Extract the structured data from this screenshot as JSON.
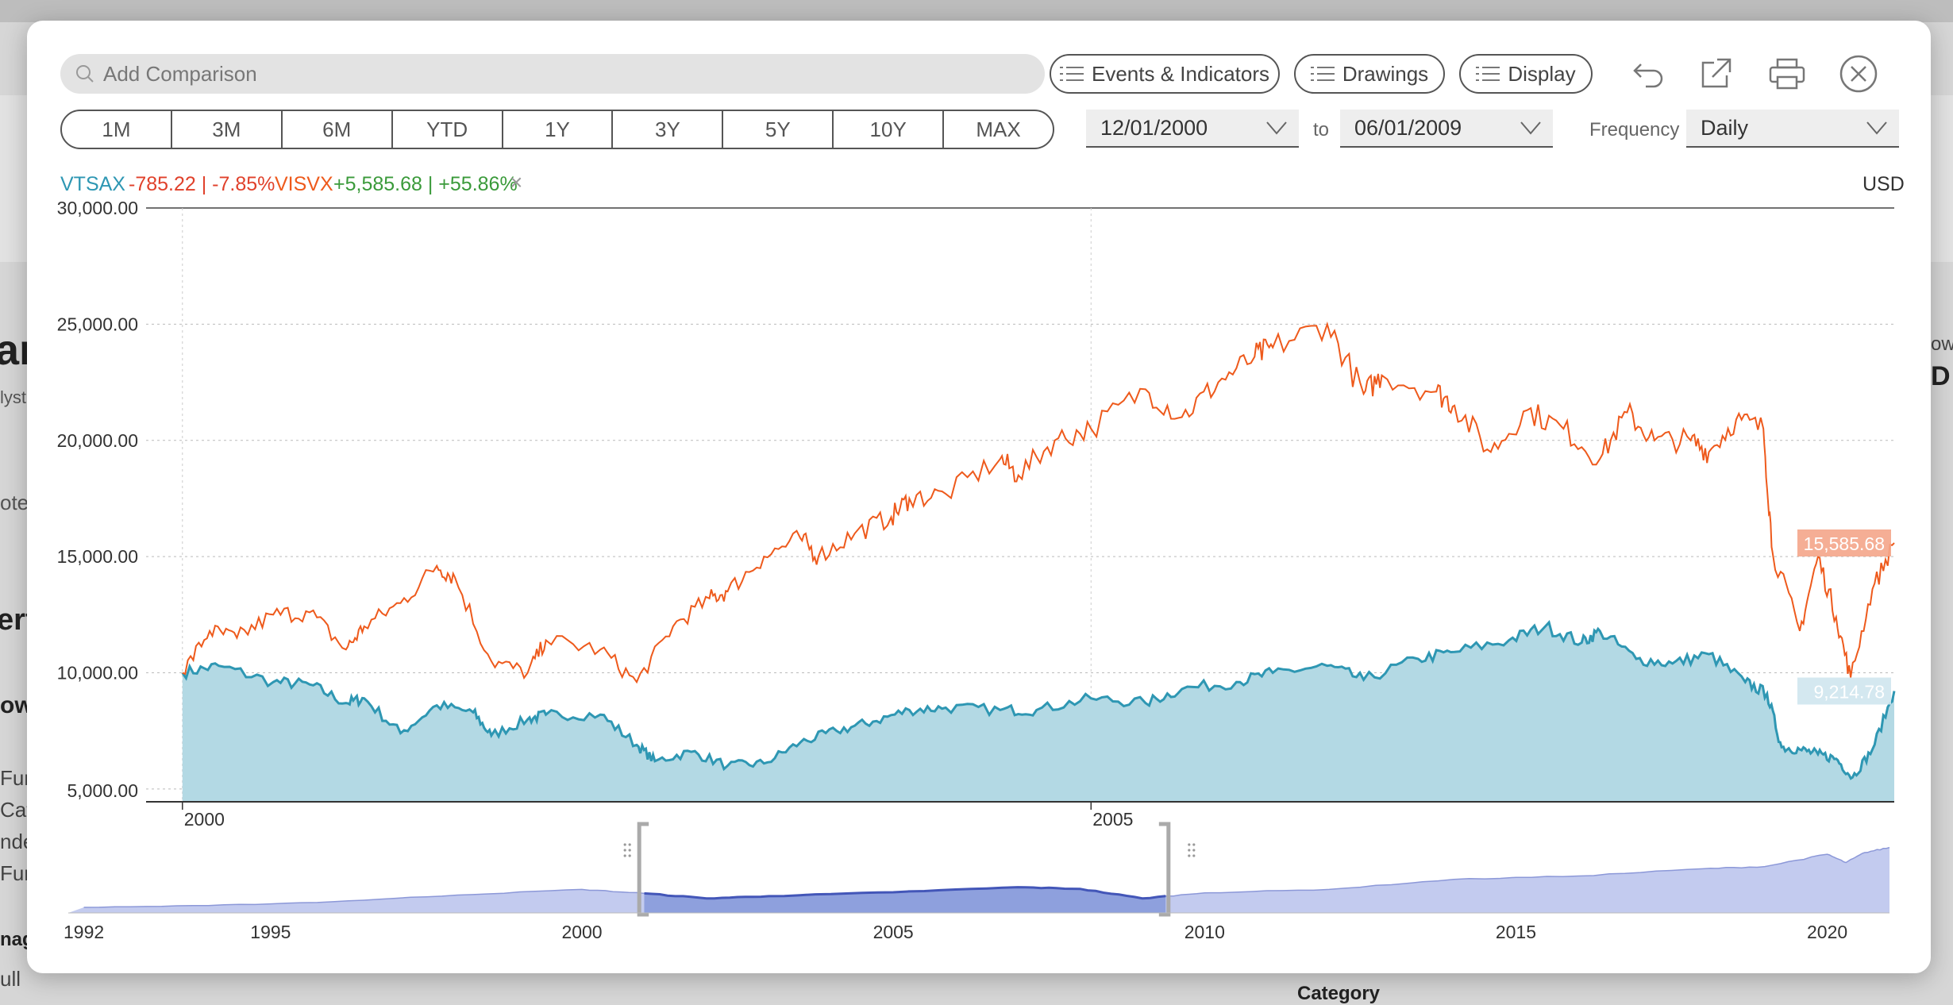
{
  "toolbar": {
    "search_placeholder": "Add Comparison",
    "events_label": "Events & Indicators",
    "drawings_label": "Drawings",
    "display_label": "Display"
  },
  "ranges": [
    "1M",
    "3M",
    "6M",
    "YTD",
    "1Y",
    "3Y",
    "5Y",
    "10Y",
    "MAX"
  ],
  "dates": {
    "start": "12/01/2000",
    "to_label": "to",
    "end": "06/01/2009",
    "frequency_label": "Frequency",
    "frequency_value": "Daily"
  },
  "legend": {
    "s1_name": "VTSAX",
    "s1_change": "-785.22 | -7.85%",
    "s2_name": "VISVX",
    "s2_change": "+5,585.68 | +55.86%",
    "remove": "×",
    "currency": "USD"
  },
  "background": {
    "frag1": "ar",
    "frag2": "lyst",
    "frag3": "ote",
    "frag4": "erf",
    "frag5": "ow",
    "frag6": "Fun",
    "frag7": "Cat",
    "frag8": "nde",
    "frag9": "Fun",
    "frag10": "nag",
    "frag11": "ull",
    "frag12": "Category",
    "frag13": "ow",
    "frag14": "D"
  },
  "colors": {
    "vtsax": "#2e97b3",
    "vtsax_fill": "#b3d9e4",
    "visvx": "#ee5a1c",
    "visvx_badge": "#f4a58a",
    "vtsax_badge": "#cfe6ee",
    "navigator": "#c3cbef",
    "navigator_sel": "#8ea0dd",
    "navigator_line": "#4356b8"
  },
  "chart_data": {
    "type": "line",
    "y_ticks": [
      "30,000.00",
      "25,000.00",
      "20,000.00",
      "15,000.00",
      "10,000.00",
      "5,000.00"
    ],
    "ylim": [
      4450,
      30000
    ],
    "x_ticks": [
      "2000",
      "2005"
    ],
    "x_range": [
      1999.8,
      2009.42
    ],
    "series": [
      {
        "name": "VTSAX",
        "end_label": "9,214.78",
        "points": [
          [
            2000.0,
            10000
          ],
          [
            2000.2,
            10300
          ],
          [
            2000.5,
            9600
          ],
          [
            2000.7,
            9500
          ],
          [
            2000.9,
            8700
          ],
          [
            2001.0,
            8900
          ],
          [
            2001.2,
            7400
          ],
          [
            2001.4,
            8600
          ],
          [
            2001.6,
            8300
          ],
          [
            2001.7,
            7300
          ],
          [
            2001.9,
            8000
          ],
          [
            2002.0,
            8200
          ],
          [
            2002.3,
            8200
          ],
          [
            2002.5,
            6900
          ],
          [
            2002.6,
            6200
          ],
          [
            2002.8,
            6600
          ],
          [
            2003.0,
            6000
          ],
          [
            2003.2,
            6100
          ],
          [
            2003.4,
            7000
          ],
          [
            2003.6,
            7500
          ],
          [
            2003.8,
            7900
          ],
          [
            2004.0,
            8400
          ],
          [
            2004.2,
            8500
          ],
          [
            2004.5,
            8400
          ],
          [
            2004.7,
            8400
          ],
          [
            2005.0,
            8900
          ],
          [
            2005.3,
            8700
          ],
          [
            2005.5,
            9300
          ],
          [
            2005.8,
            9600
          ],
          [
            2006.0,
            10000
          ],
          [
            2006.3,
            10300
          ],
          [
            2006.5,
            9700
          ],
          [
            2006.8,
            10600
          ],
          [
            2007.0,
            10900
          ],
          [
            2007.3,
            11400
          ],
          [
            2007.5,
            12000
          ],
          [
            2007.7,
            11300
          ],
          [
            2007.8,
            11800
          ],
          [
            2008.0,
            10600
          ],
          [
            2008.2,
            10400
          ],
          [
            2008.4,
            10800
          ],
          [
            2008.6,
            9600
          ],
          [
            2008.72,
            9100
          ],
          [
            2008.8,
            6800
          ],
          [
            2008.9,
            6700
          ],
          [
            2009.0,
            6500
          ],
          [
            2009.1,
            6300
          ],
          [
            2009.19,
            5500
          ],
          [
            2009.3,
            6700
          ],
          [
            2009.42,
            9215
          ]
        ]
      },
      {
        "name": "VISVX",
        "end_label": "15,585.68",
        "points": [
          [
            2000.0,
            10000
          ],
          [
            2000.15,
            11800
          ],
          [
            2000.3,
            11500
          ],
          [
            2000.5,
            12500
          ],
          [
            2000.7,
            12600
          ],
          [
            2000.9,
            11000
          ],
          [
            2001.0,
            12000
          ],
          [
            2001.2,
            13000
          ],
          [
            2001.4,
            14600
          ],
          [
            2001.5,
            14100
          ],
          [
            2001.7,
            10500
          ],
          [
            2001.9,
            10000
          ],
          [
            2002.0,
            11400
          ],
          [
            2002.3,
            11000
          ],
          [
            2002.5,
            9600
          ],
          [
            2002.7,
            12000
          ],
          [
            2002.9,
            13200
          ],
          [
            2003.0,
            13500
          ],
          [
            2003.2,
            15000
          ],
          [
            2003.4,
            15800
          ],
          [
            2003.5,
            15000
          ],
          [
            2003.7,
            16000
          ],
          [
            2003.9,
            16700
          ],
          [
            2004.0,
            17500
          ],
          [
            2004.2,
            17700
          ],
          [
            2004.5,
            19200
          ],
          [
            2004.6,
            18500
          ],
          [
            2004.8,
            20000
          ],
          [
            2005.0,
            20500
          ],
          [
            2005.3,
            22200
          ],
          [
            2005.5,
            21000
          ],
          [
            2005.7,
            22500
          ],
          [
            2005.9,
            23600
          ],
          [
            2006.0,
            24000
          ],
          [
            2006.3,
            25000
          ],
          [
            2006.5,
            22000
          ],
          [
            2006.6,
            22800
          ],
          [
            2006.9,
            22100
          ],
          [
            2007.0,
            21500
          ],
          [
            2007.2,
            19500
          ],
          [
            2007.4,
            21300
          ],
          [
            2007.6,
            20500
          ],
          [
            2007.8,
            19200
          ],
          [
            2007.95,
            21200
          ],
          [
            2008.1,
            20000
          ],
          [
            2008.3,
            20000
          ],
          [
            2008.4,
            19500
          ],
          [
            2008.55,
            20900
          ],
          [
            2008.7,
            20500
          ],
          [
            2008.75,
            15200
          ],
          [
            2008.9,
            11800
          ],
          [
            2009.0,
            15000
          ],
          [
            2009.1,
            12400
          ],
          [
            2009.18,
            9800
          ],
          [
            2009.3,
            13600
          ],
          [
            2009.42,
            15586
          ]
        ]
      }
    ],
    "navigator": {
      "x_ticks": [
        "1992",
        "1995",
        "2000",
        "2005",
        "2010",
        "2015",
        "2020"
      ],
      "x_range": [
        1991.75,
        2021.0
      ],
      "selection": [
        2000.92,
        2009.42
      ],
      "points": [
        [
          1992,
          1000
        ],
        [
          1994,
          1300
        ],
        [
          1996,
          2000
        ],
        [
          1998,
          3200
        ],
        [
          2000,
          4200
        ],
        [
          2001,
          3500
        ],
        [
          2002,
          2600
        ],
        [
          2003,
          3000
        ],
        [
          2005,
          3700
        ],
        [
          2007,
          4600
        ],
        [
          2008,
          4300
        ],
        [
          2009,
          2600
        ],
        [
          2010,
          3600
        ],
        [
          2012,
          4200
        ],
        [
          2014,
          6000
        ],
        [
          2016,
          6600
        ],
        [
          2018,
          7900
        ],
        [
          2019,
          8300
        ],
        [
          2020,
          10500
        ],
        [
          2020.3,
          9000
        ],
        [
          2020.6,
          10800
        ],
        [
          2021,
          11700
        ]
      ]
    }
  }
}
